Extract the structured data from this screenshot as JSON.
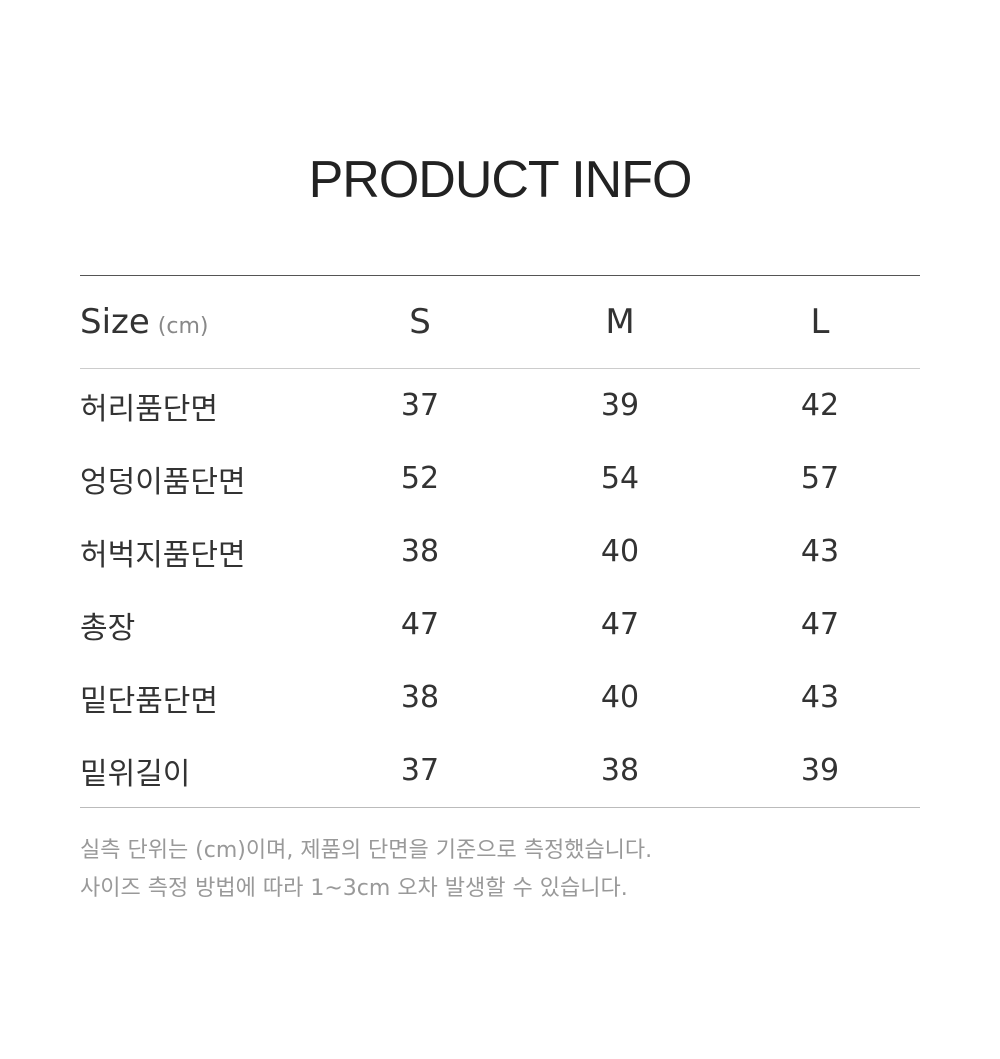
{
  "title": "PRODUCT INFO",
  "table": {
    "header": {
      "label": "Size",
      "unit": "(cm)",
      "sizes": [
        "S",
        "M",
        "L"
      ]
    },
    "rows": [
      {
        "label": "허리품단면",
        "values": [
          "37",
          "39",
          "42"
        ]
      },
      {
        "label": "엉덩이품단면",
        "values": [
          "52",
          "54",
          "57"
        ]
      },
      {
        "label": "허벅지품단면",
        "values": [
          "38",
          "40",
          "43"
        ]
      },
      {
        "label": "총장",
        "values": [
          "47",
          "47",
          "47"
        ]
      },
      {
        "label": "밑단품단면",
        "values": [
          "38",
          "40",
          "43"
        ]
      },
      {
        "label": "밑위길이",
        "values": [
          "37",
          "38",
          "39"
        ]
      }
    ]
  },
  "notes": [
    "실측 단위는 (cm)이며, 제품의 단면을 기준으로 측정했습니다.",
    "사이즈 측정 방법에 따라 1~3cm 오차 발생할 수 있습니다."
  ]
}
